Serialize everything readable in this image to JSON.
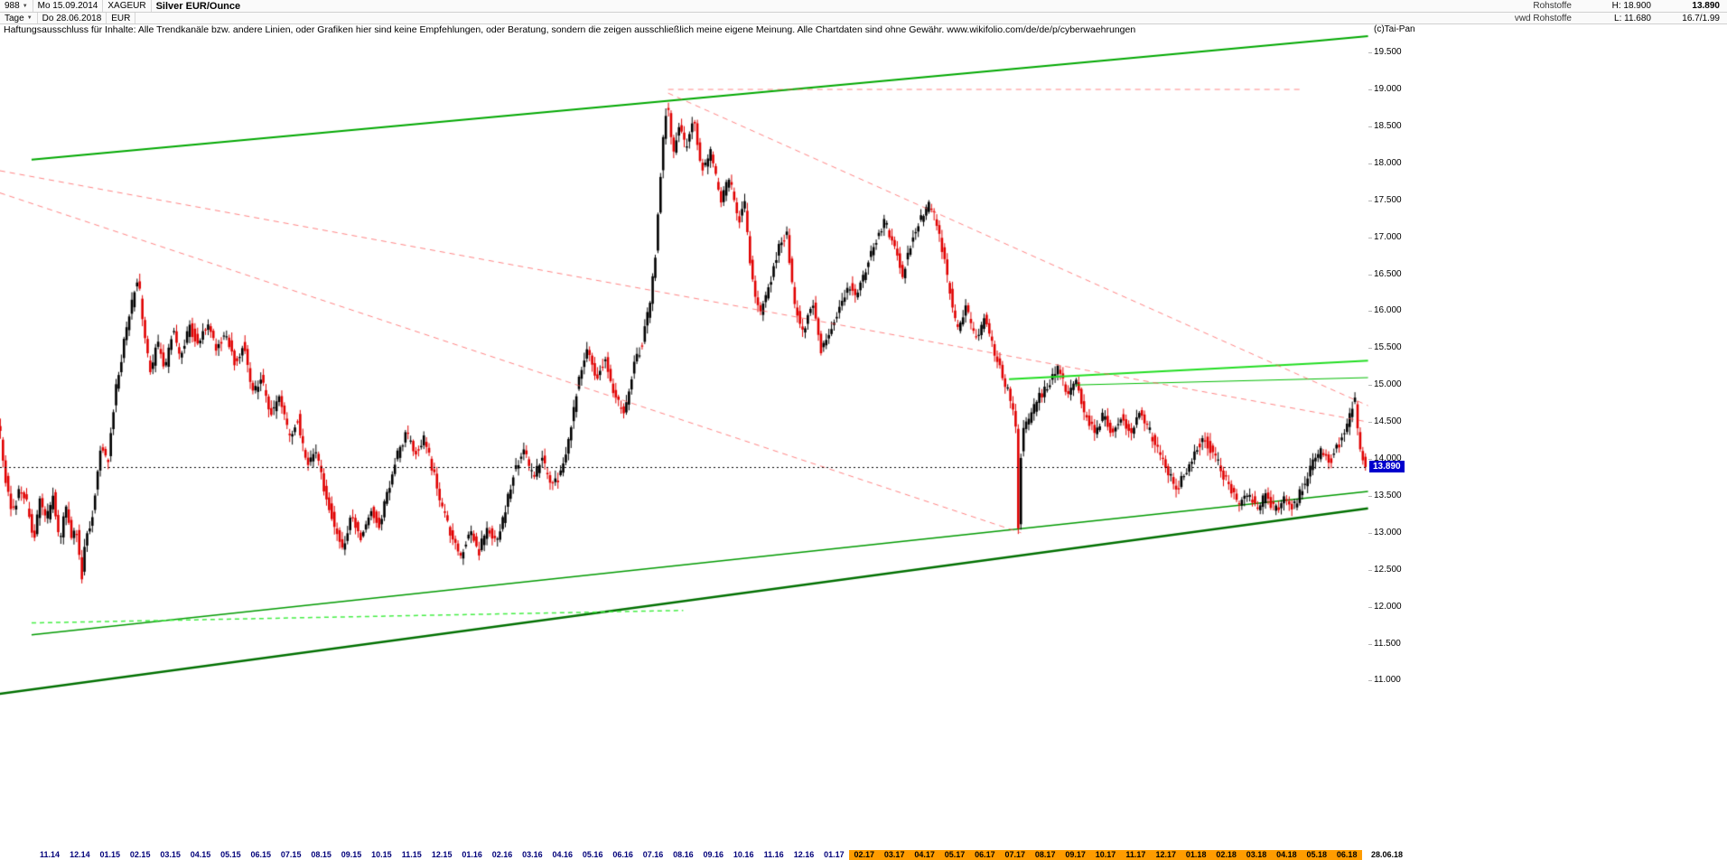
{
  "header": {
    "row1": {
      "bars_count": "988",
      "date_from": "Mo 15.09.2014",
      "symbol": "XAGEUR",
      "title": "Silver EUR/Ounce",
      "category": "Rohstoffe",
      "high_label": "H: 18.900",
      "last": "13.890"
    },
    "row2": {
      "timeframe": "Tage",
      "date_to": "Do 28.06.2018",
      "currency": "EUR",
      "feed": "vwd Rohstoffe",
      "low_label": "L: 11.680",
      "misc": "16.7/1.99"
    }
  },
  "icons": {
    "dropdown_arrow": "▼"
  },
  "disclaimer": {
    "text": "Haftungsausschluss für Inhalte: Alle Trendkanäle bzw. andere Linien, oder Grafiken hier sind keine Empfehlungen, oder Beratung, sondern die zeigen ausschließlich meine eigene Meinung. Alle Chartdaten sind ohne Gewähr.  www.wikifolio.com/de/de/p/cyberwaehrungen",
    "copyright": "(c)Tai-Pan"
  },
  "chart_data": {
    "type": "candlestick",
    "title": "Silver EUR/Ounce",
    "symbol": "XAGEUR",
    "currency": "EUR",
    "timeframe": "Tage",
    "bars_count": "988",
    "date_from": "Mo 15.09.2014",
    "date_to": "Do 28.06.2018",
    "high": "18.900",
    "low": "11.680",
    "last": "13.890",
    "current_price": 13.89,
    "y_axis": {
      "min": 11.0,
      "max": 19.5,
      "step": 0.5,
      "tick_labels": [
        "19.500",
        "19.000",
        "18.500",
        "18.000",
        "17.500",
        "17.000",
        "16.500",
        "16.000",
        "15.500",
        "15.000",
        "14.500",
        "14.000",
        "13.500",
        "13.000",
        "12.500",
        "12.000",
        "11.500",
        "11.000"
      ]
    },
    "x_tick_labels": [
      "11.14",
      "12.14",
      "01.15",
      "02.15",
      "03.15",
      "04.15",
      "05.15",
      "06.15",
      "07.15",
      "08.15",
      "09.15",
      "10.15",
      "11.15",
      "12.15",
      "01.16",
      "02.16",
      "03.16",
      "04.16",
      "05.16",
      "06.16",
      "07.16",
      "08.16",
      "09.16",
      "10.16",
      "11.16",
      "12.16",
      "01.17",
      "02.17",
      "03.17",
      "04.17",
      "05.17",
      "06.17",
      "07.17",
      "08.17",
      "09.17",
      "10.17",
      "11.17",
      "12.17",
      "01.18",
      "02.18",
      "03.18",
      "04.18",
      "05.18",
      "06.18"
    ],
    "x_highlight_start_index": 27,
    "end_date_label": "28.06.18",
    "x_unit": "months after 11.14 tick",
    "price_path": [
      [
        -1.65,
        14.5
      ],
      [
        -1.45,
        13.75
      ],
      [
        -1.2,
        13.25
      ],
      [
        -0.95,
        13.6
      ],
      [
        -0.7,
        13.35
      ],
      [
        -0.5,
        12.9
      ],
      [
        -0.3,
        13.45
      ],
      [
        -0.1,
        13.15
      ],
      [
        0.15,
        13.5
      ],
      [
        0.35,
        12.8
      ],
      [
        0.55,
        13.35
      ],
      [
        0.75,
        12.95
      ],
      [
        0.95,
        13.05
      ],
      [
        1.07,
        12.32
      ],
      [
        1.2,
        12.9
      ],
      [
        1.45,
        13.25
      ],
      [
        1.7,
        14.15
      ],
      [
        1.95,
        13.95
      ],
      [
        2.2,
        14.9
      ],
      [
        2.5,
        15.6
      ],
      [
        2.75,
        16.1
      ],
      [
        2.95,
        16.5
      ],
      [
        3.15,
        15.7
      ],
      [
        3.35,
        15.15
      ],
      [
        3.6,
        15.55
      ],
      [
        3.85,
        15.2
      ],
      [
        4.1,
        15.75
      ],
      [
        4.35,
        15.35
      ],
      [
        4.65,
        15.8
      ],
      [
        4.95,
        15.55
      ],
      [
        5.25,
        15.85
      ],
      [
        5.55,
        15.45
      ],
      [
        5.85,
        15.75
      ],
      [
        6.15,
        15.3
      ],
      [
        6.45,
        15.55
      ],
      [
        6.75,
        14.9
      ],
      [
        7.05,
        15.1
      ],
      [
        7.35,
        14.6
      ],
      [
        7.65,
        14.85
      ],
      [
        7.95,
        14.3
      ],
      [
        8.25,
        14.55
      ],
      [
        8.55,
        13.9
      ],
      [
        8.85,
        14.15
      ],
      [
        9.15,
        13.55
      ],
      [
        9.45,
        13.15
      ],
      [
        9.75,
        12.75
      ],
      [
        10.05,
        13.25
      ],
      [
        10.35,
        12.9
      ],
      [
        10.65,
        13.35
      ],
      [
        10.95,
        13.1
      ],
      [
        11.25,
        13.6
      ],
      [
        11.55,
        14.05
      ],
      [
        11.85,
        14.35
      ],
      [
        12.15,
        14.1
      ],
      [
        12.45,
        14.3
      ],
      [
        12.75,
        13.8
      ],
      [
        13.05,
        13.3
      ],
      [
        13.35,
        12.95
      ],
      [
        13.65,
        12.7
      ],
      [
        13.95,
        13.05
      ],
      [
        14.25,
        12.75
      ],
      [
        14.55,
        13.1
      ],
      [
        14.85,
        12.85
      ],
      [
        15.15,
        13.35
      ],
      [
        15.45,
        13.9
      ],
      [
        15.75,
        14.1
      ],
      [
        16.05,
        13.75
      ],
      [
        16.35,
        14.0
      ],
      [
        16.65,
        13.6
      ],
      [
        16.95,
        13.8
      ],
      [
        17.25,
        14.3
      ],
      [
        17.55,
        15.05
      ],
      [
        17.85,
        15.45
      ],
      [
        18.15,
        15.1
      ],
      [
        18.45,
        15.35
      ],
      [
        18.75,
        14.85
      ],
      [
        19.05,
        14.6
      ],
      [
        19.35,
        15.2
      ],
      [
        19.65,
        15.55
      ],
      [
        19.95,
        16.15
      ],
      [
        20.15,
        17.0
      ],
      [
        20.32,
        18.2
      ],
      [
        20.5,
        18.85
      ],
      [
        20.68,
        18.1
      ],
      [
        20.88,
        18.55
      ],
      [
        21.1,
        18.2
      ],
      [
        21.38,
        18.6
      ],
      [
        21.65,
        17.9
      ],
      [
        21.95,
        18.15
      ],
      [
        22.25,
        17.5
      ],
      [
        22.55,
        17.8
      ],
      [
        22.85,
        17.2
      ],
      [
        23.05,
        17.5
      ],
      [
        23.3,
        16.4
      ],
      [
        23.6,
        16.0
      ],
      [
        23.9,
        16.35
      ],
      [
        24.2,
        16.9
      ],
      [
        24.45,
        17.05
      ],
      [
        24.7,
        16.1
      ],
      [
        25.0,
        15.7
      ],
      [
        25.3,
        16.15
      ],
      [
        25.6,
        15.45
      ],
      [
        25.9,
        15.7
      ],
      [
        26.2,
        16.0
      ],
      [
        26.5,
        16.35
      ],
      [
        26.8,
        16.2
      ],
      [
        27.1,
        16.6
      ],
      [
        27.4,
        16.95
      ],
      [
        27.7,
        17.2
      ],
      [
        28.0,
        16.9
      ],
      [
        28.3,
        16.5
      ],
      [
        28.6,
        16.95
      ],
      [
        28.9,
        17.25
      ],
      [
        29.2,
        17.45
      ],
      [
        29.5,
        17.1
      ],
      [
        29.8,
        16.4
      ],
      [
        30.1,
        15.75
      ],
      [
        30.4,
        16.05
      ],
      [
        30.7,
        15.6
      ],
      [
        31.0,
        15.9
      ],
      [
        31.3,
        15.5
      ],
      [
        31.6,
        15.15
      ],
      [
        31.9,
        14.75
      ],
      [
        32.05,
        14.4
      ],
      [
        32.13,
        13.05
      ],
      [
        32.25,
        14.3
      ],
      [
        32.55,
        14.6
      ],
      [
        32.85,
        14.85
      ],
      [
        33.15,
        15.0
      ],
      [
        33.45,
        15.25
      ],
      [
        33.75,
        14.9
      ],
      [
        34.05,
        15.05
      ],
      [
        34.35,
        14.6
      ],
      [
        34.65,
        14.35
      ],
      [
        34.95,
        14.6
      ],
      [
        35.25,
        14.3
      ],
      [
        35.55,
        14.55
      ],
      [
        35.85,
        14.35
      ],
      [
        36.15,
        14.6
      ],
      [
        36.45,
        14.4
      ],
      [
        36.75,
        14.15
      ],
      [
        37.05,
        13.9
      ],
      [
        37.35,
        13.55
      ],
      [
        37.65,
        13.8
      ],
      [
        37.95,
        14.05
      ],
      [
        38.25,
        14.3
      ],
      [
        38.55,
        14.1
      ],
      [
        38.85,
        13.85
      ],
      [
        39.15,
        13.6
      ],
      [
        39.45,
        13.4
      ],
      [
        39.75,
        13.55
      ],
      [
        40.05,
        13.35
      ],
      [
        40.35,
        13.5
      ],
      [
        40.65,
        13.3
      ],
      [
        40.95,
        13.45
      ],
      [
        41.25,
        13.35
      ],
      [
        41.55,
        13.6
      ],
      [
        41.85,
        13.9
      ],
      [
        42.15,
        14.1
      ],
      [
        42.45,
        13.95
      ],
      [
        42.75,
        14.2
      ],
      [
        43.05,
        14.45
      ],
      [
        43.28,
        14.85
      ],
      [
        43.42,
        14.25
      ],
      [
        43.6,
        13.89
      ]
    ],
    "trend_lines": [
      {
        "name": "upper-channel",
        "m1": -0.6,
        "p1": 18.05,
        "m2": 43.7,
        "p2": 19.72,
        "color": "#00a800",
        "width": 2,
        "dash": [],
        "layer": "back"
      },
      {
        "name": "lower-channel-thick",
        "m1": -1.65,
        "p1": 10.82,
        "m2": 43.7,
        "p2": 13.33,
        "color": "#007000",
        "width": 2.5,
        "dash": [],
        "layer": "back"
      },
      {
        "name": "support-line",
        "m1": -0.6,
        "p1": 11.62,
        "m2": 43.7,
        "p2": 13.56,
        "color": "#009a00",
        "width": 1.5,
        "dash": [],
        "layer": "back"
      },
      {
        "name": "support-dashed",
        "m1": -0.6,
        "p1": 11.78,
        "m2": 21.0,
        "p2": 11.95,
        "color": "#44ee44",
        "width": 1.5,
        "dash": [
          5,
          4
        ],
        "layer": "back"
      },
      {
        "name": "resistance-right-upper",
        "m1": 31.8,
        "p1": 15.08,
        "m2": 43.7,
        "p2": 15.33,
        "color": "#22dd22",
        "width": 2,
        "dash": [],
        "layer": "front"
      },
      {
        "name": "resistance-right-lower",
        "m1": 34.0,
        "p1": 15.0,
        "m2": 43.7,
        "p2": 15.1,
        "color": "#00bb00",
        "width": 1,
        "dash": [],
        "layer": "front"
      },
      {
        "name": "downtrend-long",
        "m1": -1.65,
        "p1": 17.9,
        "m2": 43.7,
        "p2": 14.5,
        "color": "rgba(255,80,80,0.7)",
        "width": 1,
        "dash": [
          6,
          5
        ],
        "layer": "front"
      },
      {
        "name": "downtrend-steep",
        "m1": -1.65,
        "p1": 17.6,
        "m2": 32.2,
        "p2": 13.0,
        "color": "rgba(255,80,80,0.7)",
        "width": 1,
        "dash": [
          6,
          5
        ],
        "layer": "front"
      },
      {
        "name": "downtrend-from-peak",
        "m1": 20.5,
        "p1": 18.95,
        "m2": 43.7,
        "p2": 14.72,
        "color": "rgba(255,80,80,0.7)",
        "width": 1,
        "dash": [
          6,
          5
        ],
        "layer": "front"
      },
      {
        "name": "resistance-horizontal-19",
        "m1": 20.5,
        "p1": 19.0,
        "m2": 41.5,
        "p2": 19.0,
        "color": "rgba(255,80,80,0.7)",
        "width": 1,
        "dash": [
          6,
          5
        ],
        "layer": "front"
      }
    ],
    "colors": {
      "candle_up": "#000000",
      "candle_down": "#e00000",
      "current_price_line": "#000000",
      "price_marker_bg": "#0000cd",
      "x_highlight_bg": "#ff9c00",
      "x_label_color": "#00007a"
    }
  }
}
